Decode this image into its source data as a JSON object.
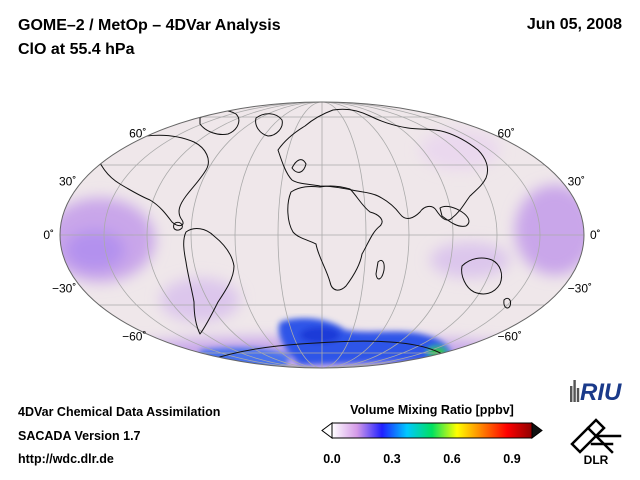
{
  "header": {
    "title_line1": "GOME–2 / MetOp – 4DVar Analysis",
    "title_line2": "ClO at 55.4 hPa",
    "date": "Jun 05, 2008"
  },
  "map": {
    "projection": "Mollweide",
    "latitude_labels": [
      "60˚",
      "30˚",
      "0˚",
      "−30˚",
      "−60˚"
    ],
    "latitude_values": [
      60,
      30,
      0,
      -30,
      -60
    ],
    "background_color": "#efe7ea",
    "enhanced_region_colors": [
      "#d8b8e8",
      "#2d55e8",
      "#36c040"
    ]
  },
  "colorbar": {
    "title": "Volume Mixing Ratio [ppbv]",
    "ticks": [
      "0.0",
      "0.3",
      "0.6",
      "0.9"
    ],
    "tick_values": [
      0.0,
      0.3,
      0.6,
      0.9
    ],
    "range": [
      0.0,
      1.0
    ],
    "colors": [
      "#ffffff",
      "#d49ae8",
      "#2020ff",
      "#00c8ff",
      "#00e060",
      "#ffff00",
      "#ff8000",
      "#ff0000",
      "#900000"
    ]
  },
  "footer": {
    "line1": "4DVar Chemical Data Assimilation",
    "line2": "SACADA Version 1.7",
    "line3": "http://wdc.dlr.de"
  },
  "logos": {
    "riu_text": "RIU",
    "dlr_text": "DLR"
  }
}
